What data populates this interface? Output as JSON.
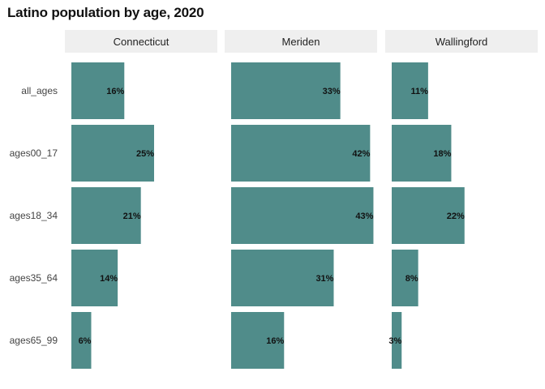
{
  "chart_data": {
    "type": "bar",
    "orientation": "horizontal",
    "title": "Latino population by age, 2020",
    "xlabel": "",
    "ylabel": "",
    "categories": [
      "all_ages",
      "ages00_17",
      "ages18_34",
      "ages35_64",
      "ages65_99"
    ],
    "facets": [
      "Connecticut",
      "Meriden",
      "Wallingford"
    ],
    "series": [
      {
        "facet": "Connecticut",
        "values": [
          16,
          25,
          21,
          14,
          6
        ],
        "labels": [
          "16%",
          "25%",
          "21%",
          "14%",
          "6%"
        ]
      },
      {
        "facet": "Meriden",
        "values": [
          33,
          42,
          43,
          31,
          16
        ],
        "labels": [
          "33%",
          "42%",
          "43%",
          "31%",
          "16%"
        ]
      },
      {
        "facet": "Wallingford",
        "values": [
          11,
          18,
          22,
          8,
          3
        ],
        "labels": [
          "11%",
          "18%",
          "22%",
          "8%",
          "3%"
        ]
      }
    ],
    "xlim": [
      0,
      45
    ],
    "bar_color": "#508c8a",
    "strip_color": "#efefef",
    "grid": false,
    "legend": "none"
  }
}
